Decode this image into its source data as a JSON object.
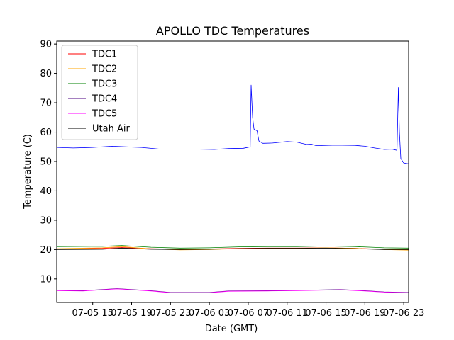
{
  "chart_data": {
    "type": "line",
    "title": "APOLLO TDC Temperatures",
    "xlabel": "Date (GMT)",
    "ylabel": "Temperature (C)",
    "x_unit": "hours since 07-05 00 GMT",
    "xlim": [
      11.3,
      47.5
    ],
    "ylim": [
      2,
      91
    ],
    "xticks": [
      {
        "value": 15,
        "label": "07-05 15"
      },
      {
        "value": 19,
        "label": "07-05 19"
      },
      {
        "value": 23,
        "label": "07-05 23"
      },
      {
        "value": 27,
        "label": "07-06 03"
      },
      {
        "value": 31,
        "label": "07-06 07"
      },
      {
        "value": 35,
        "label": "07-06 11"
      },
      {
        "value": 39,
        "label": "07-06 15"
      },
      {
        "value": 43,
        "label": "07-06 19"
      },
      {
        "value": 47,
        "label": "07-06 23"
      }
    ],
    "yticks": [
      10,
      20,
      30,
      40,
      50,
      60,
      70,
      80,
      90
    ],
    "grid": false,
    "legend_position": "top-left",
    "series": [
      {
        "name": "TDC1",
        "color": "#ff0000",
        "points": [
          [
            11.3,
            20.2
          ],
          [
            16,
            20.4
          ],
          [
            18,
            20.7
          ],
          [
            21,
            20.3
          ],
          [
            24,
            20.1
          ],
          [
            27,
            20.2
          ],
          [
            30,
            20.4
          ],
          [
            33,
            20.5
          ],
          [
            36,
            20.5
          ],
          [
            39,
            20.6
          ],
          [
            42,
            20.4
          ],
          [
            45,
            20.1
          ],
          [
            47.5,
            20.0
          ]
        ]
      },
      {
        "name": "TDC2",
        "color": "#ffa500",
        "points": [
          [
            11.3,
            20.3
          ],
          [
            16,
            20.6
          ],
          [
            18,
            21.0
          ],
          [
            21,
            20.2
          ],
          [
            24,
            19.9
          ],
          [
            27,
            20.0
          ],
          [
            30,
            20.3
          ],
          [
            33,
            20.4
          ],
          [
            36,
            20.4
          ],
          [
            39,
            20.6
          ],
          [
            42,
            20.4
          ],
          [
            45,
            20.0
          ],
          [
            47.5,
            19.8
          ]
        ]
      },
      {
        "name": "TDC3",
        "color": "#008000",
        "points": [
          [
            11.3,
            21.0
          ],
          [
            16,
            21.1
          ],
          [
            18,
            21.4
          ],
          [
            21,
            20.8
          ],
          [
            24,
            20.5
          ],
          [
            27,
            20.6
          ],
          [
            30,
            20.9
          ],
          [
            33,
            21.0
          ],
          [
            36,
            21.0
          ],
          [
            39,
            21.2
          ],
          [
            42,
            21.0
          ],
          [
            45,
            20.6
          ],
          [
            47.5,
            20.5
          ]
        ]
      },
      {
        "name": "TDC4",
        "color": "#4b0082",
        "points": [
          [
            11.3,
            6.1
          ],
          [
            14,
            6.0
          ],
          [
            17.5,
            6.7
          ],
          [
            21,
            6.0
          ],
          [
            23,
            5.4
          ],
          [
            27,
            5.4
          ],
          [
            29,
            5.9
          ],
          [
            33,
            6.0
          ],
          [
            36,
            6.1
          ],
          [
            39,
            6.3
          ],
          [
            40.5,
            6.4
          ],
          [
            43,
            6.0
          ],
          [
            45,
            5.6
          ],
          [
            47.5,
            5.4
          ]
        ]
      },
      {
        "name": "TDC5",
        "color": "#ff00ff",
        "points": [
          [
            11.3,
            6.0
          ],
          [
            14,
            5.9
          ],
          [
            17.5,
            6.6
          ],
          [
            21,
            5.9
          ],
          [
            23,
            5.3
          ],
          [
            27,
            5.3
          ],
          [
            29,
            5.8
          ],
          [
            33,
            5.9
          ],
          [
            36,
            6.0
          ],
          [
            39,
            6.2
          ],
          [
            40.5,
            6.3
          ],
          [
            43,
            5.9
          ],
          [
            45,
            5.5
          ],
          [
            47.5,
            5.3
          ]
        ]
      },
      {
        "name": "Utah Air",
        "color": "#000000",
        "points": [
          [
            11.3,
            20.0
          ],
          [
            16,
            20.1
          ],
          [
            18,
            20.5
          ],
          [
            21,
            20.1
          ],
          [
            24,
            20.0
          ],
          [
            27,
            20.1
          ],
          [
            30,
            20.3
          ],
          [
            33,
            20.4
          ],
          [
            36,
            20.4
          ],
          [
            39,
            20.5
          ],
          [
            42,
            20.3
          ],
          [
            45,
            20.0
          ],
          [
            47.5,
            20.0
          ]
        ]
      },
      {
        "name": "",
        "color": "#0000ff",
        "points": [
          [
            11.3,
            54.8
          ],
          [
            13,
            54.6
          ],
          [
            15,
            54.8
          ],
          [
            17,
            55.2
          ],
          [
            18.5,
            55.0
          ],
          [
            20,
            54.8
          ],
          [
            22,
            54.2
          ],
          [
            24,
            54.2
          ],
          [
            26,
            54.2
          ],
          [
            27.5,
            54.1
          ],
          [
            29,
            54.4
          ],
          [
            30.5,
            54.5
          ],
          [
            31.2,
            55.0
          ],
          [
            31.3,
            76.0
          ],
          [
            31.45,
            65.0
          ],
          [
            31.6,
            61.0
          ],
          [
            31.9,
            60.5
          ],
          [
            32.1,
            57.0
          ],
          [
            32.5,
            56.2
          ],
          [
            33.5,
            56.3
          ],
          [
            35,
            56.8
          ],
          [
            36,
            56.6
          ],
          [
            37,
            55.8
          ],
          [
            37.5,
            55.9
          ],
          [
            38,
            55.4
          ],
          [
            40,
            55.6
          ],
          [
            42,
            55.5
          ],
          [
            43,
            55.2
          ],
          [
            44,
            54.6
          ],
          [
            45,
            54.1
          ],
          [
            45.8,
            54.2
          ],
          [
            46.3,
            53.8
          ],
          [
            46.45,
            75.2
          ],
          [
            46.55,
            60.0
          ],
          [
            46.7,
            51.0
          ],
          [
            47.0,
            49.5
          ],
          [
            47.5,
            49.2
          ]
        ]
      }
    ]
  }
}
